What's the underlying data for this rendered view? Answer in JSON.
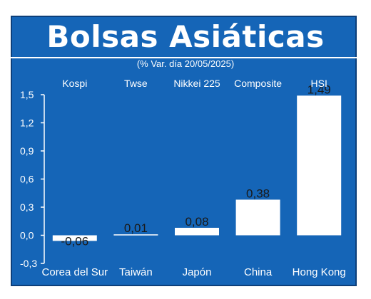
{
  "header": {
    "title": "Bolsas Asiáticas",
    "subtitle": "(% Var. día 20/05/2025)"
  },
  "colors": {
    "background": "#1565b7",
    "bars": "#ffffff",
    "text": "#ffffff",
    "value_text": "#1a1a1a"
  },
  "chart_data": {
    "type": "bar",
    "categories": [
      "Corea del Sur",
      "Taiwán",
      "Japón",
      "China",
      "Hong Kong"
    ],
    "index_names": [
      "Kospi",
      "Twse",
      "Nikkei 225",
      "Composite",
      "HSI"
    ],
    "values": [
      -0.06,
      0.01,
      0.08,
      0.38,
      1.49
    ],
    "value_labels": [
      "-0,06",
      "0,01",
      "0,08",
      "0,38",
      "1,49"
    ],
    "ylim": [
      -0.3,
      1.5
    ],
    "yticks": [
      1.5,
      1.2,
      0.9,
      0.6,
      0.3,
      0.0,
      -0.3
    ],
    "ytick_labels": [
      "1,5",
      "1,2",
      "0,9",
      "0,6",
      "0,3",
      "0,0",
      "-0,3"
    ],
    "grid": false
  }
}
